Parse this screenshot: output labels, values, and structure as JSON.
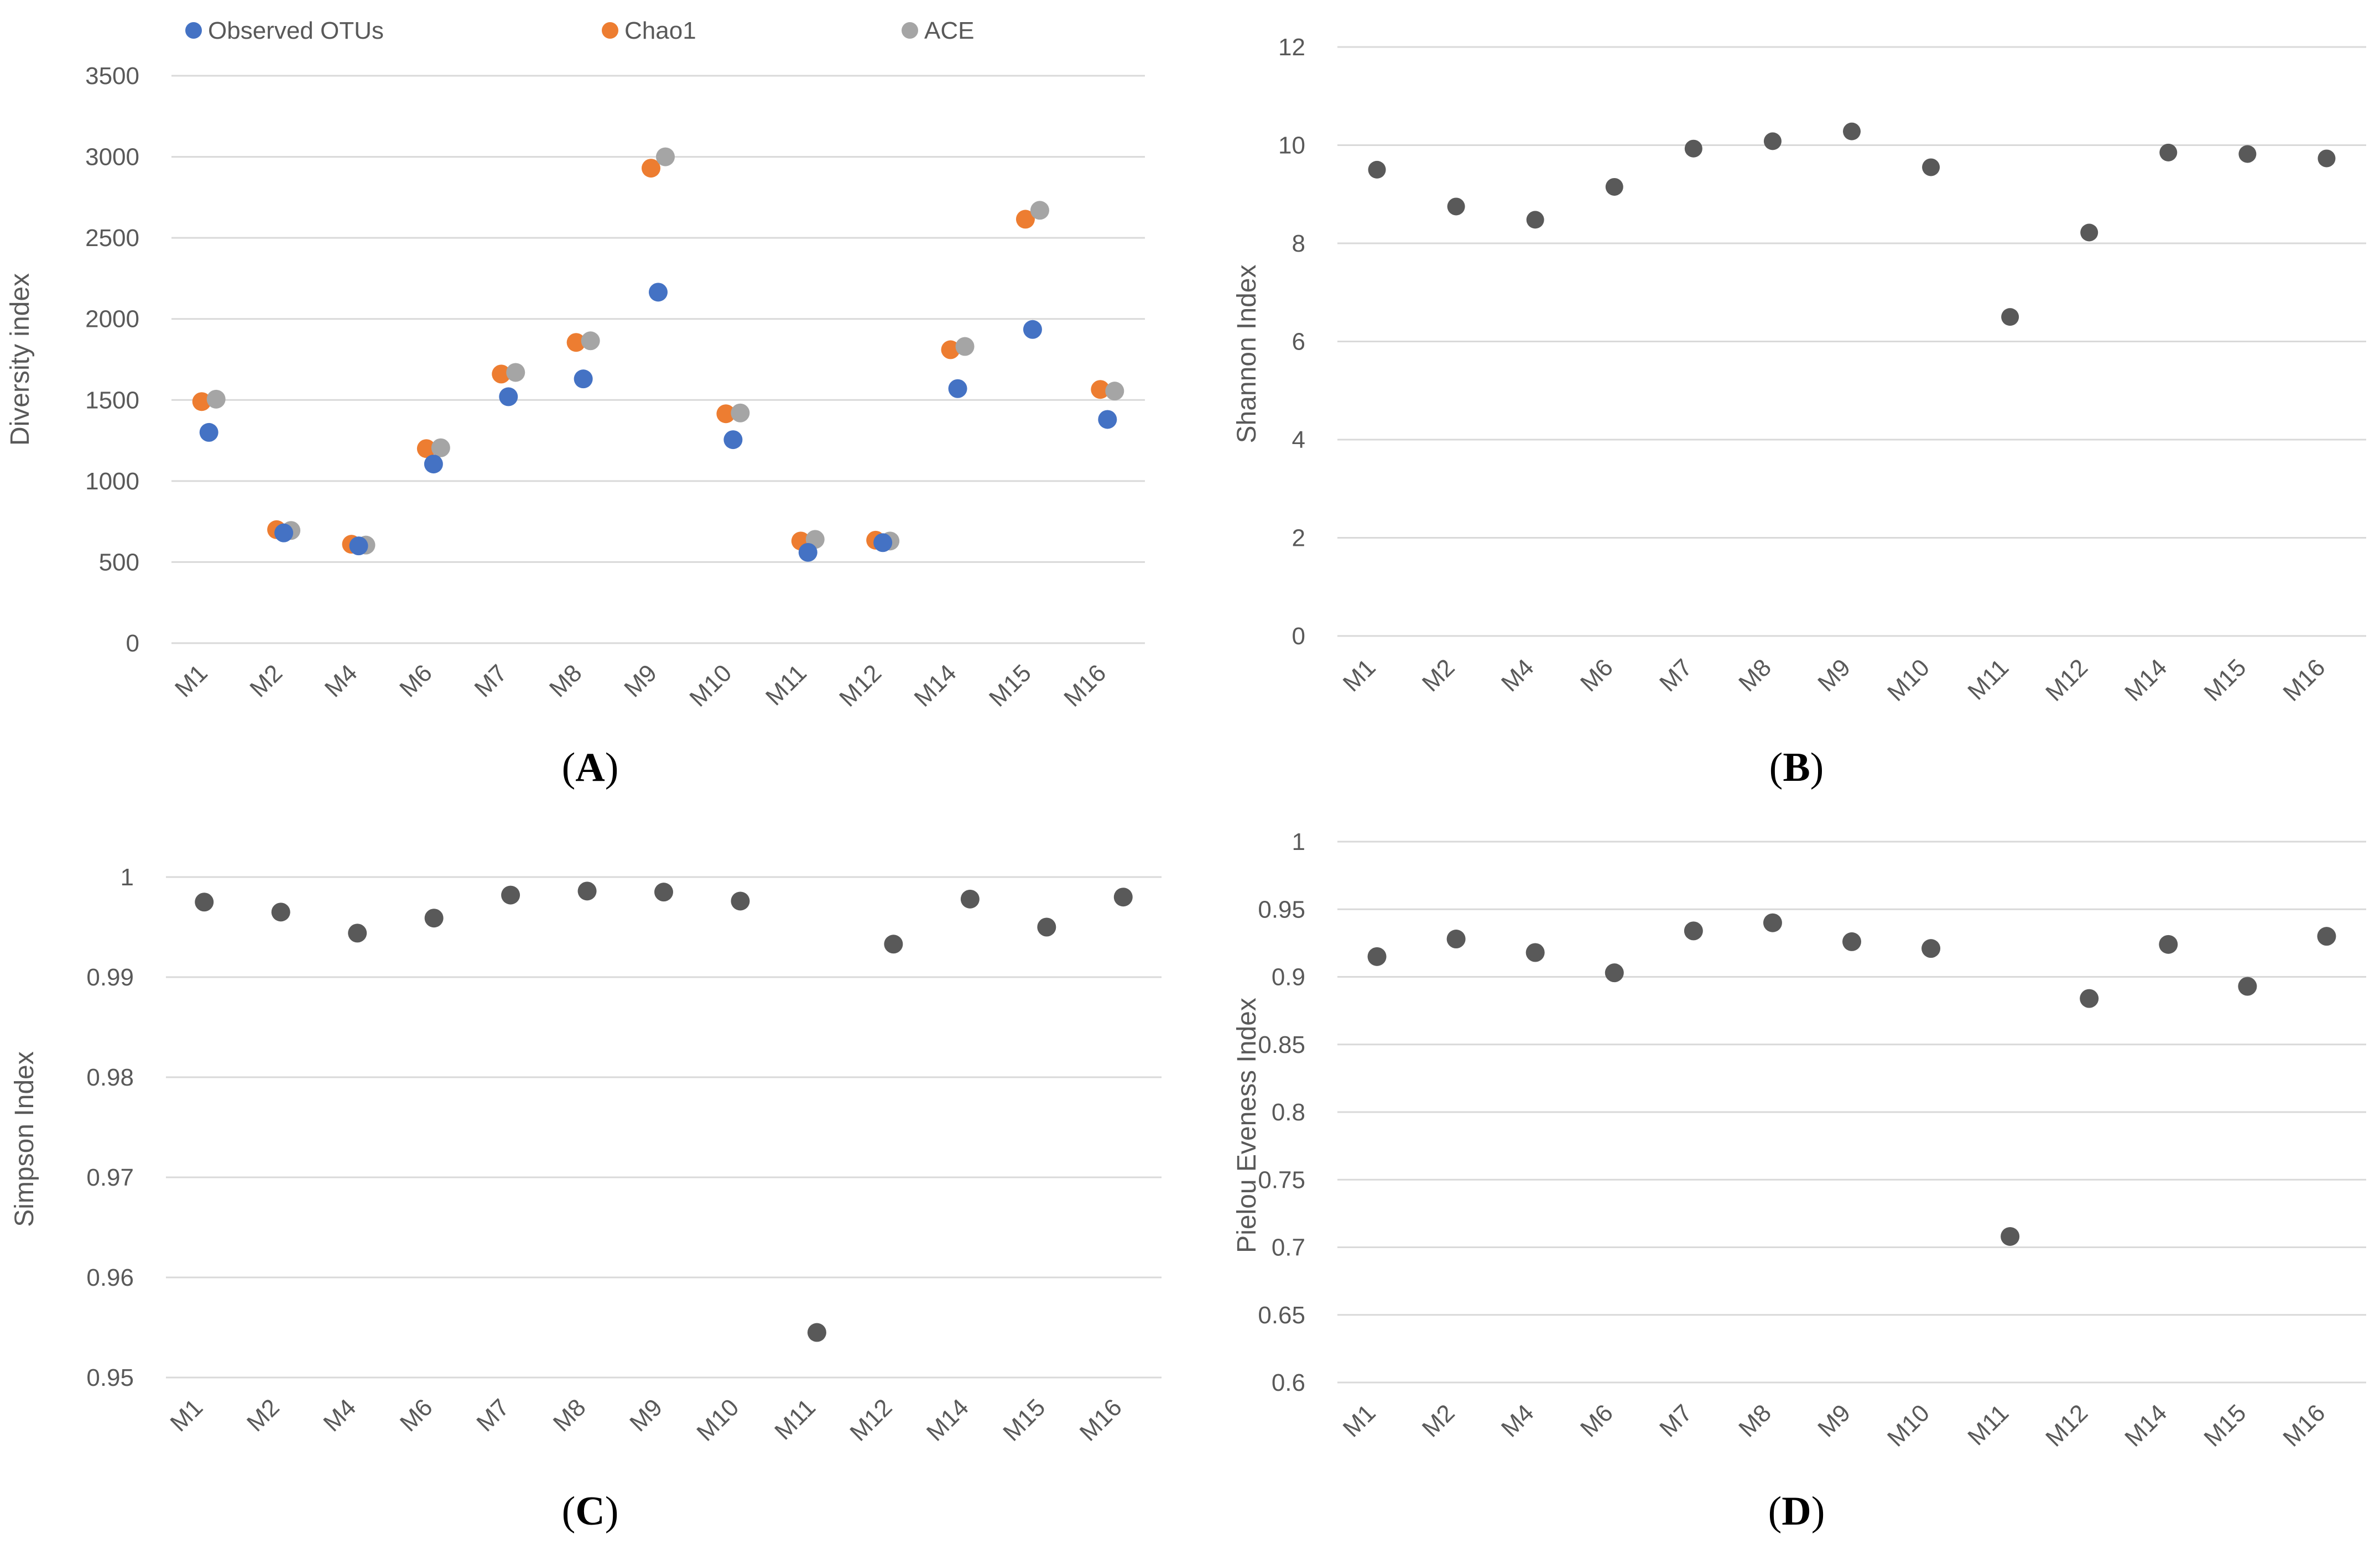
{
  "colors": {
    "observed": "#4472c4",
    "chao1": "#ed7d31",
    "ace": "#a5a5a5",
    "single": "#595959",
    "grid": "#d9d9d9",
    "text": "#595959"
  },
  "chart_data": [
    {
      "id": "A",
      "type": "scatter",
      "panel_label": "A",
      "ylabel": "Diversity index",
      "xlabel": "",
      "categories": [
        "M1",
        "M2",
        "M4",
        "M6",
        "M7",
        "M8",
        "M9",
        "M10",
        "M11",
        "M12",
        "M14",
        "M15",
        "M16"
      ],
      "yticks": [
        "0",
        "500",
        "1000",
        "1500",
        "2000",
        "2500",
        "3000",
        "3500"
      ],
      "ylim": [
        0,
        3500
      ],
      "grid": true,
      "legend_position": "top",
      "series": [
        {
          "name": "Observed OTUs",
          "color_key": "observed",
          "offset": 0,
          "values": [
            1300,
            680,
            600,
            1105,
            1520,
            1630,
            2165,
            1255,
            560,
            620,
            1570,
            1935,
            1380
          ]
        },
        {
          "name": "Chao1",
          "color_key": "chao1",
          "offset": -1,
          "values": [
            1490,
            700,
            610,
            1200,
            1660,
            1855,
            2930,
            1415,
            630,
            635,
            1810,
            2615,
            1565
          ]
        },
        {
          "name": "ACE",
          "color_key": "ace",
          "offset": 1,
          "values": [
            1505,
            695,
            605,
            1205,
            1670,
            1865,
            3000,
            1420,
            640,
            630,
            1830,
            2670,
            1555
          ]
        }
      ]
    },
    {
      "id": "B",
      "type": "scatter",
      "panel_label": "B",
      "ylabel": "Shannon Index",
      "xlabel": "",
      "categories": [
        "M1",
        "M2",
        "M4",
        "M6",
        "M7",
        "M8",
        "M9",
        "M10",
        "M11",
        "M12",
        "M14",
        "M15",
        "M16"
      ],
      "yticks": [
        "0",
        "2",
        "4",
        "6",
        "8",
        "10",
        "12"
      ],
      "ylim": [
        0,
        12
      ],
      "grid": true,
      "series": [
        {
          "color_key": "single",
          "offset": 0,
          "values": [
            9.5,
            8.75,
            8.48,
            9.15,
            9.93,
            10.08,
            10.28,
            9.55,
            6.5,
            8.22,
            9.85,
            9.82,
            9.73
          ]
        }
      ]
    },
    {
      "id": "C",
      "type": "scatter",
      "panel_label": "C",
      "ylabel": "Simpson Index",
      "xlabel": "",
      "categories": [
        "M1",
        "M2",
        "M4",
        "M6",
        "M7",
        "M8",
        "M9",
        "M10",
        "M11",
        "M12",
        "M14",
        "M15",
        "M16"
      ],
      "yticks": [
        "0.95",
        "0.96",
        "0.97",
        "0.98",
        "0.99",
        "1"
      ],
      "ylim": [
        0.95,
        1
      ],
      "grid": true,
      "series": [
        {
          "color_key": "single",
          "offset": 0,
          "values": [
            0.9975,
            0.9965,
            0.9944,
            0.9959,
            0.9982,
            0.9986,
            0.9985,
            0.9976,
            0.9545,
            0.9933,
            0.9978,
            0.995,
            0.998
          ]
        }
      ]
    },
    {
      "id": "D",
      "type": "scatter",
      "panel_label": "D",
      "ylabel": "Pielou Eveness Index",
      "xlabel": "",
      "categories": [
        "M1",
        "M2",
        "M4",
        "M6",
        "M7",
        "M8",
        "M9",
        "M10",
        "M11",
        "M12",
        "M14",
        "M15",
        "M16"
      ],
      "yticks": [
        "0.6",
        "0.65",
        "0.7",
        "0.75",
        "0.8",
        "0.85",
        "0.9",
        "0.95",
        "1"
      ],
      "ylim": [
        0.6,
        1
      ],
      "grid": true,
      "series": [
        {
          "color_key": "single",
          "offset": 0,
          "values": [
            0.915,
            0.928,
            0.918,
            0.903,
            0.934,
            0.94,
            0.926,
            0.921,
            0.708,
            0.884,
            0.924,
            0.893,
            0.93
          ]
        }
      ]
    }
  ]
}
